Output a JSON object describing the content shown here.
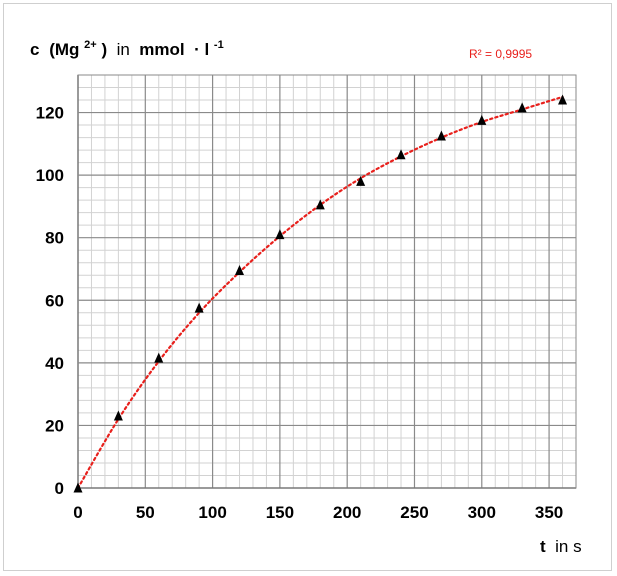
{
  "chart_data": {
    "type": "scatter",
    "ylabel": {
      "c": "c",
      "species": "(Mg",
      "charge": "2+",
      "close": ")",
      "in": " in ",
      "unit": "mmol",
      "dot": " · l",
      "exp": "-1"
    },
    "xlabel": {
      "var": "t",
      "rest": " in s"
    },
    "annotation": "R² = 0,9995",
    "x_ticks": [
      0,
      50,
      100,
      150,
      200,
      250,
      300,
      350
    ],
    "y_ticks": [
      0,
      20,
      40,
      60,
      80,
      100,
      120
    ],
    "xlim": [
      0,
      370
    ],
    "ylim": [
      0,
      132
    ],
    "x_minor_step": 10,
    "y_minor_step": 4,
    "series": [
      {
        "marker": "triangle",
        "color": "#000000",
        "x": [
          0,
          30,
          60,
          90,
          120,
          150,
          180,
          210,
          240,
          270,
          300,
          330,
          360
        ],
        "y": [
          0,
          23,
          41.5,
          57.5,
          69.5,
          81,
          90.5,
          98,
          106.5,
          112.5,
          117.5,
          121.5,
          124
        ]
      }
    ],
    "trendline": {
      "style": "dotted",
      "color": "#e8201c",
      "x": [
        0,
        30,
        60,
        90,
        120,
        150,
        180,
        210,
        240,
        270,
        300,
        330,
        360
      ],
      "y": [
        0,
        22,
        40.5,
        56,
        69,
        80.5,
        90.5,
        99,
        106,
        112,
        117,
        121,
        125
      ]
    },
    "grid": true
  }
}
